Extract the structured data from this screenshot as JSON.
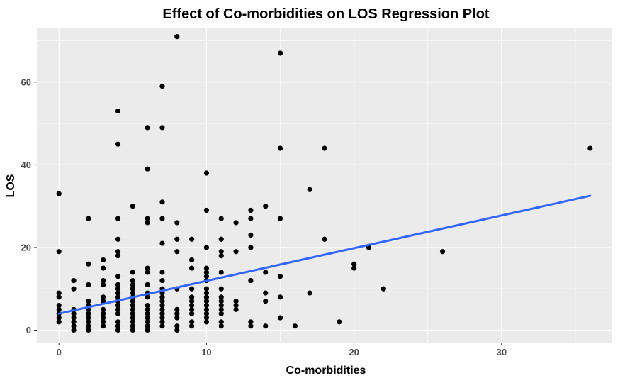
{
  "chart_data": {
    "type": "scatter",
    "title": "Effect of Co-morbidities on LOS Regression Plot",
    "xlabel": "Co-morbidities",
    "ylabel": "LOS",
    "xlim": [
      -1.5,
      37.5
    ],
    "ylim": [
      -3,
      73
    ],
    "xticks": [
      0,
      10,
      20,
      30
    ],
    "yticks": [
      0,
      20,
      40,
      60
    ],
    "grid": true,
    "background": "#ebebeb",
    "point_color": "#000000",
    "line_color": "#3366ff",
    "regression_line": {
      "x": [
        0,
        36
      ],
      "y": [
        4,
        32.5
      ]
    },
    "points": [
      [
        0,
        2
      ],
      [
        0,
        3
      ],
      [
        0,
        4
      ],
      [
        0,
        5
      ],
      [
        0,
        6
      ],
      [
        0,
        8
      ],
      [
        0,
        9
      ],
      [
        0,
        19
      ],
      [
        0,
        33
      ],
      [
        1,
        0
      ],
      [
        1,
        1
      ],
      [
        1,
        2
      ],
      [
        1,
        3
      ],
      [
        1,
        4
      ],
      [
        1,
        5
      ],
      [
        1,
        10
      ],
      [
        1,
        12
      ],
      [
        2,
        0
      ],
      [
        2,
        1
      ],
      [
        2,
        2
      ],
      [
        2,
        3
      ],
      [
        2,
        4
      ],
      [
        2,
        5
      ],
      [
        2,
        6
      ],
      [
        2,
        7
      ],
      [
        2,
        11
      ],
      [
        2,
        16
      ],
      [
        2,
        27
      ],
      [
        3,
        1
      ],
      [
        3,
        2
      ],
      [
        3,
        3
      ],
      [
        3,
        4
      ],
      [
        3,
        5
      ],
      [
        3,
        7
      ],
      [
        3,
        8
      ],
      [
        3,
        11
      ],
      [
        3,
        12
      ],
      [
        3,
        15
      ],
      [
        3,
        17
      ],
      [
        4,
        0
      ],
      [
        4,
        1
      ],
      [
        4,
        2
      ],
      [
        4,
        4
      ],
      [
        4,
        5
      ],
      [
        4,
        6
      ],
      [
        4,
        7
      ],
      [
        4,
        8
      ],
      [
        4,
        9
      ],
      [
        4,
        10
      ],
      [
        4,
        11
      ],
      [
        4,
        13
      ],
      [
        4,
        18
      ],
      [
        4,
        19
      ],
      [
        4,
        22
      ],
      [
        4,
        27
      ],
      [
        4,
        45
      ],
      [
        4,
        53
      ],
      [
        5,
        0
      ],
      [
        5,
        1
      ],
      [
        5,
        2
      ],
      [
        5,
        3
      ],
      [
        5,
        4
      ],
      [
        5,
        5
      ],
      [
        5,
        6
      ],
      [
        5,
        7
      ],
      [
        5,
        8
      ],
      [
        5,
        9
      ],
      [
        5,
        10
      ],
      [
        5,
        11
      ],
      [
        5,
        12
      ],
      [
        5,
        14
      ],
      [
        5,
        30
      ],
      [
        6,
        0
      ],
      [
        6,
        1
      ],
      [
        6,
        2
      ],
      [
        6,
        3
      ],
      [
        6,
        4
      ],
      [
        6,
        5
      ],
      [
        6,
        6
      ],
      [
        6,
        8
      ],
      [
        6,
        9
      ],
      [
        6,
        11
      ],
      [
        6,
        14
      ],
      [
        6,
        15
      ],
      [
        6,
        26
      ],
      [
        6,
        27
      ],
      [
        6,
        39
      ],
      [
        6,
        49
      ],
      [
        7,
        1
      ],
      [
        7,
        2
      ],
      [
        7,
        3
      ],
      [
        7,
        4
      ],
      [
        7,
        5
      ],
      [
        7,
        6
      ],
      [
        7,
        7
      ],
      [
        7,
        8
      ],
      [
        7,
        9
      ],
      [
        7,
        10
      ],
      [
        7,
        12
      ],
      [
        7,
        14
      ],
      [
        7,
        21
      ],
      [
        7,
        27
      ],
      [
        7,
        31
      ],
      [
        7,
        49
      ],
      [
        7,
        59
      ],
      [
        8,
        0
      ],
      [
        8,
        1
      ],
      [
        8,
        3
      ],
      [
        8,
        4
      ],
      [
        8,
        5
      ],
      [
        8,
        10
      ],
      [
        8,
        19
      ],
      [
        8,
        22
      ],
      [
        8,
        26
      ],
      [
        8,
        71
      ],
      [
        9,
        1
      ],
      [
        9,
        2
      ],
      [
        9,
        4
      ],
      [
        9,
        5
      ],
      [
        9,
        6
      ],
      [
        9,
        7
      ],
      [
        9,
        8
      ],
      [
        9,
        10
      ],
      [
        9,
        15
      ],
      [
        9,
        17
      ],
      [
        9,
        22
      ],
      [
        10,
        2
      ],
      [
        10,
        3
      ],
      [
        10,
        4
      ],
      [
        10,
        5
      ],
      [
        10,
        6
      ],
      [
        10,
        7
      ],
      [
        10,
        8
      ],
      [
        10,
        9
      ],
      [
        10,
        10
      ],
      [
        10,
        12
      ],
      [
        10,
        13
      ],
      [
        10,
        14
      ],
      [
        10,
        15
      ],
      [
        10,
        20
      ],
      [
        10,
        29
      ],
      [
        10,
        38
      ],
      [
        11,
        1
      ],
      [
        11,
        2
      ],
      [
        11,
        4
      ],
      [
        11,
        5
      ],
      [
        11,
        6
      ],
      [
        11,
        7
      ],
      [
        11,
        8
      ],
      [
        11,
        10
      ],
      [
        11,
        14
      ],
      [
        11,
        18
      ],
      [
        11,
        19
      ],
      [
        11,
        22
      ],
      [
        11,
        27
      ],
      [
        12,
        5
      ],
      [
        12,
        6
      ],
      [
        12,
        7
      ],
      [
        12,
        19
      ],
      [
        12,
        26
      ],
      [
        13,
        1
      ],
      [
        13,
        2
      ],
      [
        13,
        12
      ],
      [
        13,
        20
      ],
      [
        13,
        23
      ],
      [
        13,
        27
      ],
      [
        13,
        29
      ],
      [
        14,
        1
      ],
      [
        14,
        7
      ],
      [
        14,
        9
      ],
      [
        14,
        14
      ],
      [
        14,
        30
      ],
      [
        15,
        3
      ],
      [
        15,
        8
      ],
      [
        15,
        13
      ],
      [
        15,
        27
      ],
      [
        15,
        44
      ],
      [
        15,
        67
      ],
      [
        16,
        1
      ],
      [
        17,
        9
      ],
      [
        17,
        34
      ],
      [
        18,
        22
      ],
      [
        18,
        44
      ],
      [
        19,
        2
      ],
      [
        20,
        15
      ],
      [
        20,
        16
      ],
      [
        21,
        20
      ],
      [
        22,
        10
      ],
      [
        26,
        19
      ],
      [
        36,
        44
      ]
    ]
  }
}
